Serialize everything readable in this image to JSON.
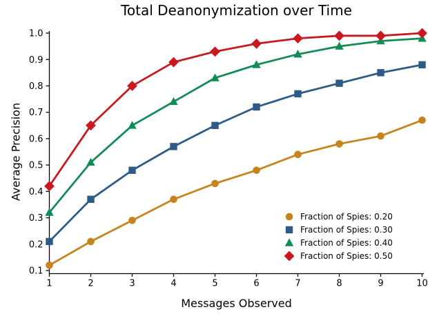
{
  "chart_data": {
    "type": "line",
    "title": "Total Deanonymization over Time",
    "xlabel": "Messages Observed",
    "ylabel": "Average Precision",
    "x": [
      1,
      2,
      3,
      4,
      5,
      6,
      7,
      8,
      9,
      10
    ],
    "xticks": [
      "1",
      "2",
      "3",
      "4",
      "5",
      "6",
      "7",
      "8",
      "9",
      "10"
    ],
    "yticks": [
      "0.1",
      "0.2",
      "0.3",
      "0.4",
      "0.5",
      "0.6",
      "0.7",
      "0.8",
      "0.9",
      "1.0"
    ],
    "xlim": [
      1,
      10
    ],
    "ylim": [
      0.1,
      1.0
    ],
    "grid": false,
    "legend_position": "lower-right-inside",
    "legend_frame": false,
    "axis_color": "#000000",
    "series": [
      {
        "name": "Fraction of Spies: 0.20",
        "marker": "circle",
        "color": "#C5841E",
        "values": [
          0.12,
          0.21,
          0.29,
          0.37,
          0.43,
          0.48,
          0.54,
          0.58,
          0.61,
          0.67
        ]
      },
      {
        "name": "Fraction of Spies: 0.30",
        "marker": "square",
        "color": "#2E5A88",
        "values": [
          0.21,
          0.37,
          0.48,
          0.57,
          0.65,
          0.72,
          0.77,
          0.81,
          0.85,
          0.88
        ]
      },
      {
        "name": "Fraction of Spies: 0.40",
        "marker": "triangle",
        "color": "#128C55",
        "values": [
          0.32,
          0.51,
          0.65,
          0.74,
          0.83,
          0.88,
          0.92,
          0.95,
          0.97,
          0.98
        ]
      },
      {
        "name": "Fraction of Spies: 0.50",
        "marker": "diamond",
        "color": "#C8191E",
        "values": [
          0.42,
          0.65,
          0.8,
          0.89,
          0.93,
          0.96,
          0.98,
          0.99,
          0.99,
          1.0
        ]
      }
    ]
  }
}
